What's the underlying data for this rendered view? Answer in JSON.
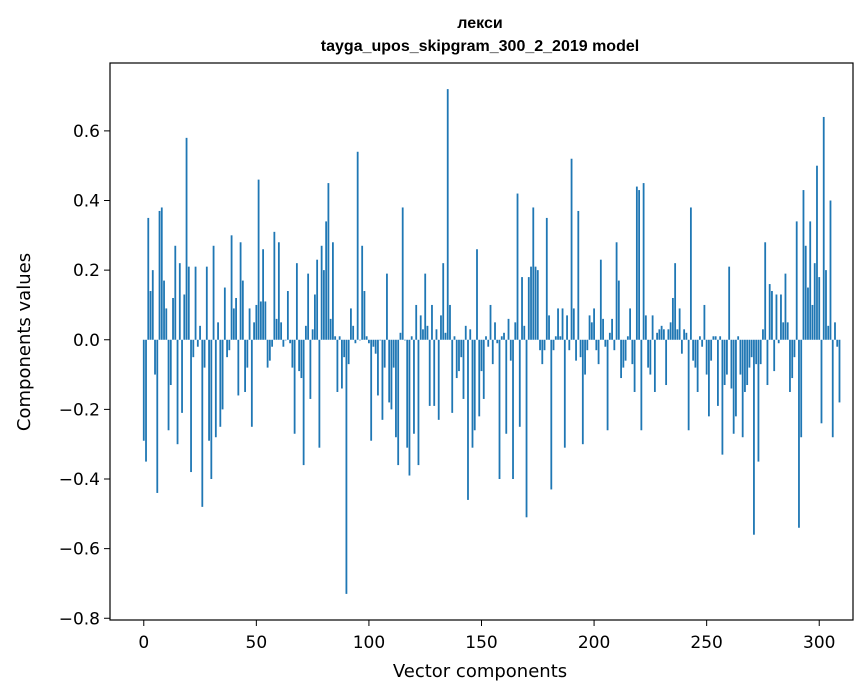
{
  "chart_data": {
    "type": "bar",
    "title_line1": "лекси",
    "title_line2": "tayga_upos_skipgram_300_2_2019 model",
    "xlabel": "Vector components",
    "ylabel": "Components values",
    "xlim": [
      -15,
      315
    ],
    "ylim": [
      -0.805,
      0.795
    ],
    "xticks": [
      0,
      50,
      100,
      150,
      200,
      250,
      300
    ],
    "yticks": [
      -0.8,
      -0.6,
      -0.4,
      -0.2,
      0.0,
      0.2,
      0.4,
      0.6
    ],
    "ytick_labels": [
      "−0.8",
      "−0.6",
      "−0.4",
      "−0.2",
      "0.0",
      "0.2",
      "0.4",
      "0.6"
    ],
    "bar_color": "#1f77b4",
    "values": [
      -0.29,
      -0.35,
      0.35,
      0.14,
      0.2,
      -0.1,
      -0.44,
      0.37,
      0.38,
      0.17,
      0.09,
      -0.26,
      -0.13,
      0.12,
      0.27,
      -0.3,
      0.22,
      -0.21,
      0.13,
      0.58,
      0.21,
      -0.38,
      -0.05,
      0.21,
      -0.02,
      0.04,
      -0.48,
      -0.08,
      0.21,
      -0.29,
      -0.4,
      0.27,
      -0.28,
      0.05,
      -0.25,
      -0.2,
      0.15,
      -0.05,
      -0.03,
      0.3,
      0.09,
      0.12,
      -0.16,
      0.28,
      0.17,
      -0.15,
      -0.08,
      0.09,
      -0.25,
      0.05,
      0.1,
      0.46,
      0.11,
      0.26,
      0.11,
      -0.08,
      -0.06,
      -0.02,
      0.31,
      0.06,
      0.28,
      0.05,
      -0.02,
      0.0,
      0.14,
      -0.01,
      -0.08,
      -0.27,
      0.22,
      -0.09,
      -0.11,
      -0.36,
      0.04,
      0.19,
      -0.17,
      0.03,
      0.13,
      0.23,
      -0.31,
      0.27,
      0.2,
      0.34,
      0.45,
      0.06,
      0.28,
      0.01,
      -0.15,
      0.01,
      -0.14,
      -0.05,
      -0.73,
      -0.07,
      0.09,
      0.04,
      -0.01,
      0.54,
      0.0,
      0.27,
      0.14,
      0.01,
      -0.01,
      -0.29,
      -0.02,
      -0.04,
      -0.16,
      0.0,
      -0.23,
      -0.08,
      0.19,
      -0.18,
      -0.2,
      -0.08,
      -0.28,
      -0.36,
      0.02,
      0.38,
      0.0,
      -0.31,
      -0.39,
      0.01,
      -0.27,
      0.1,
      -0.36,
      0.07,
      0.03,
      0.19,
      0.04,
      -0.19,
      0.1,
      -0.19,
      0.03,
      -0.23,
      0.07,
      0.22,
      0.02,
      0.72,
      0.1,
      -0.21,
      0.01,
      -0.11,
      -0.09,
      -0.05,
      -0.17,
      0.04,
      -0.46,
      0.03,
      -0.31,
      -0.26,
      0.26,
      -0.22,
      -0.09,
      -0.17,
      0.01,
      -0.02,
      0.1,
      -0.07,
      0.05,
      -0.01,
      -0.4,
      0.01,
      0.02,
      -0.27,
      0.06,
      -0.06,
      -0.4,
      0.05,
      0.42,
      -0.25,
      0.18,
      0.04,
      -0.51,
      0.18,
      0.21,
      0.38,
      0.21,
      0.2,
      -0.03,
      -0.07,
      -0.03,
      0.35,
      0.07,
      -0.43,
      -0.03,
      0.01,
      0.09,
      0.01,
      0.09,
      -0.31,
      0.07,
      -0.03,
      0.52,
      0.09,
      -0.06,
      0.37,
      -0.05,
      -0.3,
      -0.1,
      -0.03,
      0.07,
      0.05,
      0.09,
      -0.03,
      -0.07,
      0.23,
      0.06,
      -0.02,
      -0.26,
      0.02,
      0.06,
      -0.03,
      0.28,
      0.17,
      -0.11,
      -0.08,
      -0.06,
      0.01,
      0.09,
      -0.07,
      -0.15,
      0.44,
      0.43,
      -0.26,
      0.45,
      0.07,
      -0.08,
      -0.1,
      0.07,
      -0.15,
      0.02,
      0.03,
      0.04,
      0.03,
      -0.13,
      0.03,
      0.05,
      0.12,
      0.22,
      0.03,
      0.09,
      -0.04,
      0.03,
      0.02,
      -0.26,
      0.38,
      -0.06,
      -0.08,
      -0.15,
      0.01,
      -0.02,
      0.1,
      -0.1,
      -0.22,
      -0.06,
      0.01,
      0.01,
      -0.19,
      0.01,
      -0.33,
      -0.13,
      -0.1,
      0.21,
      -0.14,
      -0.27,
      -0.22,
      0.01,
      -0.1,
      -0.28,
      -0.15,
      -0.13,
      -0.08,
      -0.05,
      -0.56,
      -0.07,
      -0.35,
      -0.07,
      0.03,
      0.28,
      -0.13,
      0.16,
      0.14,
      -0.09,
      0.13,
      -0.01,
      0.13,
      0.05,
      0.19,
      0.05,
      -0.15,
      -0.11,
      -0.05,
      0.34,
      -0.54,
      -0.28,
      0.43,
      0.27,
      0.15,
      0.34,
      0.1,
      0.22,
      0.5,
      0.18,
      -0.24,
      0.64,
      0.2,
      0.04,
      0.4,
      -0.28,
      0.05,
      -0.02,
      -0.18
    ]
  }
}
